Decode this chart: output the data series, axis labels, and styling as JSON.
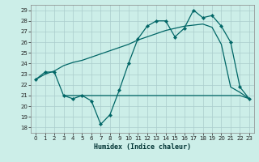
{
  "title": "",
  "xlabel": "Humidex (Indice chaleur)",
  "bg_color": "#cceee8",
  "grid_color": "#aacccc",
  "line_color": "#006666",
  "xlim": [
    -0.5,
    23.5
  ],
  "ylim": [
    17.5,
    29.5
  ],
  "yticks": [
    18,
    19,
    20,
    21,
    22,
    23,
    24,
    25,
    26,
    27,
    28,
    29
  ],
  "xticks": [
    0,
    1,
    2,
    3,
    4,
    5,
    6,
    7,
    8,
    9,
    10,
    11,
    12,
    13,
    14,
    15,
    16,
    17,
    18,
    19,
    20,
    21,
    22,
    23
  ],
  "line1_x": [
    0,
    1,
    2,
    3,
    4,
    5,
    6,
    7,
    8,
    9,
    10,
    11,
    12,
    13,
    14,
    15,
    16,
    17,
    18,
    19,
    20,
    21,
    22,
    23
  ],
  "line1_y": [
    22.5,
    23.0,
    23.3,
    23.8,
    24.1,
    24.3,
    24.6,
    24.9,
    25.2,
    25.5,
    25.8,
    26.2,
    26.5,
    26.8,
    27.1,
    27.3,
    27.5,
    27.6,
    27.7,
    27.4,
    25.8,
    21.8,
    21.3,
    20.7
  ],
  "line2_x": [
    0,
    1,
    2,
    3,
    4,
    5,
    6,
    7,
    8,
    9,
    10,
    11,
    12,
    13,
    14,
    15,
    16,
    17,
    18,
    19,
    20,
    21,
    22,
    23
  ],
  "line2_y": [
    22.5,
    23.2,
    23.2,
    21.0,
    20.7,
    21.0,
    20.5,
    18.3,
    19.2,
    21.5,
    24.0,
    26.3,
    27.5,
    28.0,
    28.0,
    26.5,
    27.3,
    29.0,
    28.3,
    28.5,
    27.5,
    26.0,
    21.8,
    20.7
  ],
  "line3_x": [
    3,
    4,
    5,
    6,
    7,
    8,
    9,
    10,
    11,
    12,
    13,
    14,
    15,
    16,
    17,
    18,
    19,
    20,
    21,
    22,
    23
  ],
  "line3_y": [
    21.0,
    21.0,
    21.0,
    21.0,
    21.0,
    21.0,
    21.0,
    21.0,
    21.0,
    21.0,
    21.0,
    21.0,
    21.0,
    21.0,
    21.0,
    21.0,
    21.0,
    21.0,
    21.0,
    21.0,
    20.7
  ]
}
